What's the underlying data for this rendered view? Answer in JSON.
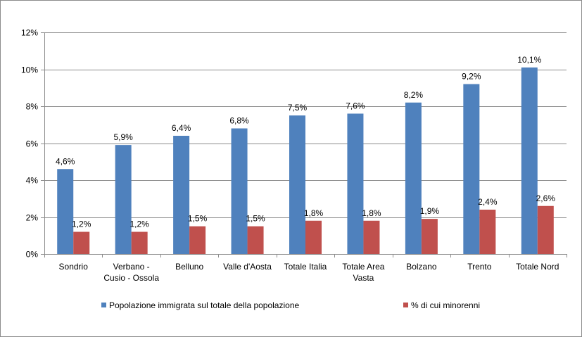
{
  "chart_data": {
    "type": "bar",
    "title": "",
    "xlabel": "",
    "ylabel": "",
    "ylim": [
      0,
      12
    ],
    "yticks": [
      "0%",
      "2%",
      "4%",
      "6%",
      "8%",
      "10%",
      "12%"
    ],
    "ytick_values": [
      0,
      2,
      4,
      6,
      8,
      10,
      12
    ],
    "grid": true,
    "legend_position": "bottom",
    "categories": [
      [
        "Sondrio"
      ],
      [
        "Verbano -",
        "Cusio - Ossola"
      ],
      [
        "Belluno"
      ],
      [
        "Valle d'Aosta"
      ],
      [
        "Totale Italia"
      ],
      [
        "Totale Area",
        "Vasta"
      ],
      [
        "Bolzano"
      ],
      [
        "Trento"
      ],
      [
        "Totale Nord"
      ]
    ],
    "series": [
      {
        "name": "Popolazione immigrata sul totale della popolazione",
        "color": "#4f81bd",
        "values": [
          4.6,
          5.9,
          6.4,
          6.8,
          7.5,
          7.6,
          8.2,
          9.2,
          10.1
        ],
        "labels": [
          "4,6%",
          "5,9%",
          "6,4%",
          "6,8%",
          "7,5%",
          "7,6%",
          "8,2%",
          "9,2%",
          "10,1%"
        ]
      },
      {
        "name": "% di cui minorenni",
        "color": "#c0504d",
        "values": [
          1.2,
          1.2,
          1.5,
          1.5,
          1.8,
          1.8,
          1.9,
          2.4,
          2.6
        ],
        "labels": [
          "1,2%",
          "1,2%",
          "1,5%",
          "1,5%",
          "1,8%",
          "1,8%",
          "1,9%",
          "2,4%",
          "2,6%"
        ]
      }
    ]
  }
}
